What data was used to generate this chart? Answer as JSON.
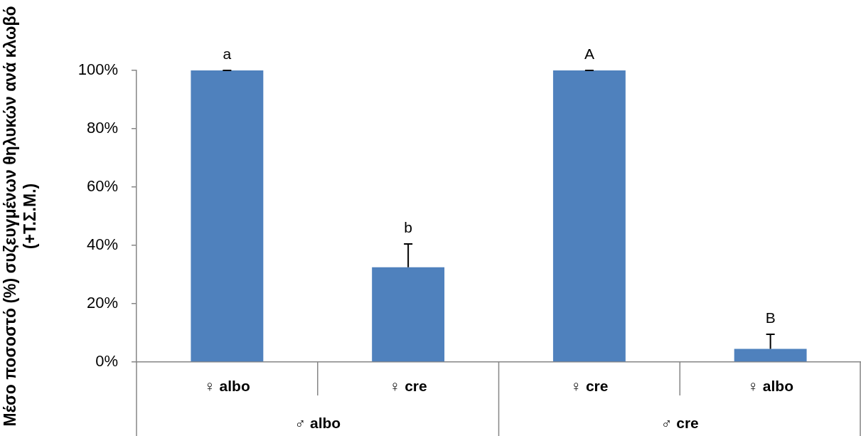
{
  "chart_data": {
    "type": "bar",
    "ylabel": "Μέσο ποσοστό (%) συζευγμένων θηλυκών ανά κλωβό\n(+Τ.Σ.Μ.)",
    "categories": [
      "♀ albo",
      "♀ cre",
      "♀ cre",
      "♀ albo"
    ],
    "values": [
      100,
      32.5,
      100,
      4.5
    ],
    "color": "#4f81bd",
    "errors": [
      [
        100,
        100
      ],
      [
        32.5,
        40.5
      ],
      [
        100,
        100
      ],
      [
        4.5,
        9.5
      ]
    ],
    "value_labels": [
      "a",
      "b",
      "A",
      "B"
    ],
    "annotations": [
      "♂ albo",
      "♂ cre"
    ],
    "ylim": [
      0,
      100
    ],
    "yticks": [
      {
        "value": 0,
        "label": "0%"
      },
      {
        "value": 20,
        "label": "20%"
      },
      {
        "value": 40,
        "label": "40%"
      },
      {
        "value": 60,
        "label": "60%"
      },
      {
        "value": 80,
        "label": "80%"
      },
      {
        "value": 100,
        "label": "100%"
      }
    ],
    "grid": false
  }
}
